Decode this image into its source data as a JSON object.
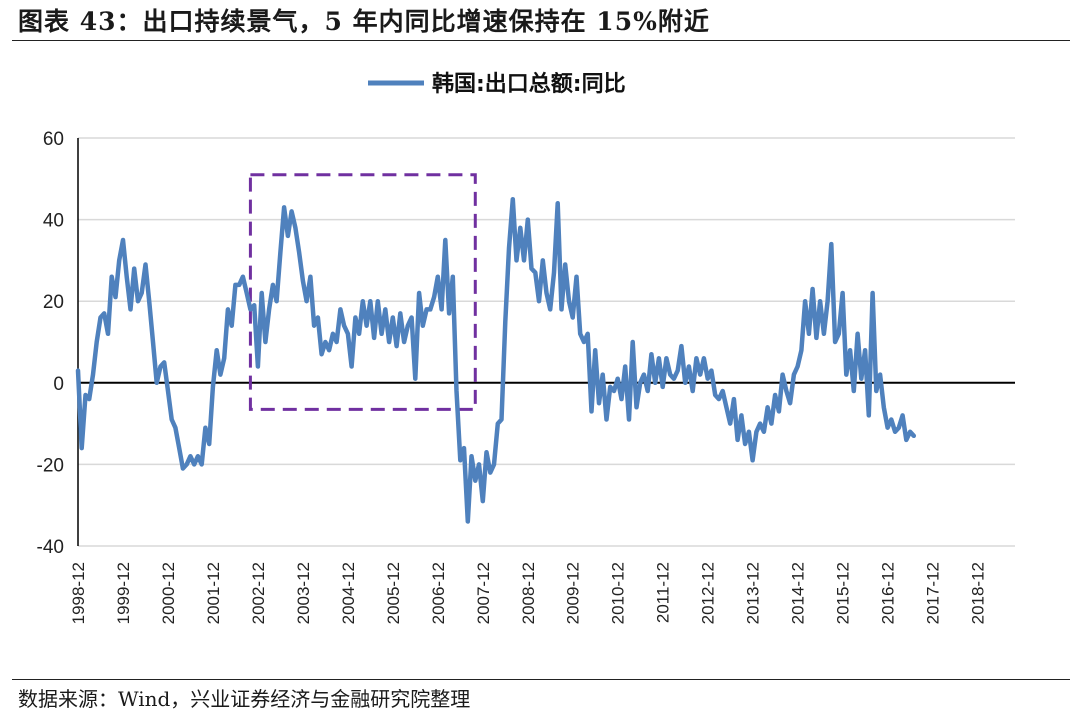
{
  "figure": {
    "title": "图表 43：出口持续景气，5 年内同比增速保持在 15%附近",
    "source": "数据来源：Wind，兴业证券经济与金融研究院整理"
  },
  "chart_data": {
    "type": "line",
    "title": "",
    "xlabel": "",
    "ylabel": "",
    "ylim": [
      -40,
      60
    ],
    "yticks": [
      -40,
      -20,
      0,
      20,
      40,
      60
    ],
    "grid": true,
    "legend_position": "top-center",
    "xticks": [
      "1998-12",
      "1999-12",
      "2000-12",
      "2001-12",
      "2002-12",
      "2003-12",
      "2004-12",
      "2005-12",
      "2006-12",
      "2007-12",
      "2008-12",
      "2009-12",
      "2010-12",
      "2011-12",
      "2012-12",
      "2013-12",
      "2014-12",
      "2015-12",
      "2016-12",
      "2017-12",
      "2018-12"
    ],
    "x_start": "1998-12",
    "x_end": "2019-10",
    "highlight_box": {
      "x_from": "2002-10",
      "x_to": "2007-10",
      "y_from": -6.5,
      "y_to": 51
    },
    "colors": {
      "line": "#4f81bd",
      "highlight": "#7030a0",
      "zero_line": "#000000",
      "grid": "#d9d9d9"
    },
    "series": [
      {
        "name": "韩国:出口总额:同比",
        "values": [
          [
            "1998-12",
            3
          ],
          [
            "1999-01",
            -16
          ],
          [
            "1999-02",
            -3
          ],
          [
            "1999-03",
            -4
          ],
          [
            "1999-04",
            2
          ],
          [
            "1999-05",
            10
          ],
          [
            "1999-06",
            16
          ],
          [
            "1999-07",
            17
          ],
          [
            "1999-08",
            12
          ],
          [
            "1999-09",
            26
          ],
          [
            "1999-10",
            21
          ],
          [
            "1999-11",
            30
          ],
          [
            "1999-12",
            35
          ],
          [
            "2000-01",
            26
          ],
          [
            "2000-02",
            18
          ],
          [
            "2000-03",
            28
          ],
          [
            "2000-04",
            20
          ],
          [
            "2000-05",
            22
          ],
          [
            "2000-06",
            29
          ],
          [
            "2000-07",
            20
          ],
          [
            "2000-08",
            10
          ],
          [
            "2000-09",
            0
          ],
          [
            "2000-10",
            4
          ],
          [
            "2000-11",
            5
          ],
          [
            "2000-12",
            -2
          ],
          [
            "2001-01",
            -9
          ],
          [
            "2001-02",
            -11
          ],
          [
            "2001-03",
            -16
          ],
          [
            "2001-04",
            -21
          ],
          [
            "2001-05",
            -20
          ],
          [
            "2001-06",
            -18
          ],
          [
            "2001-07",
            -20
          ],
          [
            "2001-08",
            -18
          ],
          [
            "2001-09",
            -20
          ],
          [
            "2001-10",
            -11
          ],
          [
            "2001-11",
            -15
          ],
          [
            "2001-12",
            -1
          ],
          [
            "2002-01",
            8
          ],
          [
            "2002-02",
            2
          ],
          [
            "2002-03",
            6
          ],
          [
            "2002-04",
            18
          ],
          [
            "2002-05",
            14
          ],
          [
            "2002-06",
            24
          ],
          [
            "2002-07",
            24
          ],
          [
            "2002-08",
            26
          ],
          [
            "2002-09",
            22
          ],
          [
            "2002-10",
            18
          ],
          [
            "2002-11",
            19
          ],
          [
            "2002-12",
            4
          ],
          [
            "2003-01",
            22
          ],
          [
            "2003-02",
            10
          ],
          [
            "2003-03",
            18
          ],
          [
            "2003-04",
            24
          ],
          [
            "2003-05",
            20
          ],
          [
            "2003-06",
            32
          ],
          [
            "2003-07",
            43
          ],
          [
            "2003-08",
            36
          ],
          [
            "2003-09",
            42
          ],
          [
            "2003-10",
            38
          ],
          [
            "2003-11",
            32
          ],
          [
            "2003-12",
            25
          ],
          [
            "2004-01",
            20
          ],
          [
            "2004-02",
            26
          ],
          [
            "2004-03",
            14
          ],
          [
            "2004-04",
            16
          ],
          [
            "2004-05",
            7
          ],
          [
            "2004-06",
            10
          ],
          [
            "2004-07",
            8
          ],
          [
            "2004-08",
            12
          ],
          [
            "2004-09",
            10
          ],
          [
            "2004-10",
            18
          ],
          [
            "2004-11",
            14
          ],
          [
            "2004-12",
            12
          ],
          [
            "2005-01",
            4
          ],
          [
            "2005-02",
            16
          ],
          [
            "2005-03",
            12
          ],
          [
            "2005-04",
            20
          ],
          [
            "2005-05",
            14
          ],
          [
            "2005-06",
            20
          ],
          [
            "2005-07",
            11
          ],
          [
            "2005-08",
            20
          ],
          [
            "2005-09",
            12
          ],
          [
            "2005-10",
            18
          ],
          [
            "2005-11",
            10
          ],
          [
            "2005-12",
            16
          ],
          [
            "2006-01",
            9
          ],
          [
            "2006-02",
            17
          ],
          [
            "2006-03",
            10
          ],
          [
            "2006-04",
            14
          ],
          [
            "2006-05",
            16
          ],
          [
            "2006-06",
            1
          ],
          [
            "2006-07",
            22
          ],
          [
            "2006-08",
            14
          ],
          [
            "2006-09",
            18
          ],
          [
            "2006-10",
            18
          ],
          [
            "2006-11",
            21
          ],
          [
            "2006-12",
            26
          ],
          [
            "2007-01",
            18
          ],
          [
            "2007-02",
            35
          ],
          [
            "2007-03",
            17
          ],
          [
            "2007-04",
            26
          ],
          [
            "2007-05",
            -2
          ],
          [
            "2007-06",
            -19
          ],
          [
            "2007-07",
            -16
          ],
          [
            "2007-08",
            -34
          ],
          [
            "2007-09",
            -18
          ],
          [
            "2007-10",
            -24
          ],
          [
            "2007-11",
            -20
          ],
          [
            "2007-12",
            -29
          ],
          [
            "2008-01",
            -17
          ],
          [
            "2008-02",
            -22
          ],
          [
            "2008-03",
            -20
          ],
          [
            "2008-04",
            -10
          ],
          [
            "2008-05",
            -9
          ],
          [
            "2008-06",
            15
          ],
          [
            "2008-07",
            33
          ],
          [
            "2008-08",
            45
          ],
          [
            "2008-09",
            30
          ],
          [
            "2008-10",
            38
          ],
          [
            "2008-11",
            30
          ],
          [
            "2008-12",
            40
          ],
          [
            "2009-01",
            28
          ],
          [
            "2009-02",
            27
          ],
          [
            "2009-03",
            20
          ],
          [
            "2009-04",
            30
          ],
          [
            "2009-05",
            22
          ],
          [
            "2009-06",
            18
          ],
          [
            "2009-07",
            27
          ],
          [
            "2009-08",
            44
          ],
          [
            "2009-09",
            18
          ],
          [
            "2009-10",
            29
          ],
          [
            "2009-11",
            20
          ],
          [
            "2009-12",
            16
          ],
          [
            "2010-01",
            26
          ],
          [
            "2010-02",
            12
          ],
          [
            "2010-03",
            10
          ],
          [
            "2010-04",
            12
          ],
          [
            "2010-05",
            -7
          ],
          [
            "2010-06",
            8
          ],
          [
            "2010-07",
            -5
          ],
          [
            "2010-08",
            2
          ],
          [
            "2010-09",
            -9
          ],
          [
            "2010-10",
            -1
          ],
          [
            "2010-11",
            -2
          ],
          [
            "2010-12",
            1
          ],
          [
            "2011-01",
            -4
          ],
          [
            "2011-02",
            4
          ],
          [
            "2011-03",
            -9
          ],
          [
            "2011-04",
            10
          ],
          [
            "2011-05",
            -6
          ],
          [
            "2011-06",
            0
          ],
          [
            "2011-07",
            2
          ],
          [
            "2011-08",
            -2
          ],
          [
            "2011-09",
            7
          ],
          [
            "2011-10",
            0
          ],
          [
            "2011-11",
            6
          ],
          [
            "2011-12",
            -1
          ],
          [
            "2012-01",
            6
          ],
          [
            "2012-02",
            2
          ],
          [
            "2012-03",
            1
          ],
          [
            "2012-04",
            3
          ],
          [
            "2012-05",
            9
          ],
          [
            "2012-06",
            0
          ],
          [
            "2012-07",
            4
          ],
          [
            "2012-08",
            -2
          ],
          [
            "2012-09",
            6
          ],
          [
            "2012-10",
            2
          ],
          [
            "2012-11",
            6
          ],
          [
            "2012-12",
            1
          ],
          [
            "2013-01",
            3
          ],
          [
            "2013-02",
            -3
          ],
          [
            "2013-03",
            -4
          ],
          [
            "2013-04",
            -2
          ],
          [
            "2013-05",
            -6
          ],
          [
            "2013-06",
            -10
          ],
          [
            "2013-07",
            -4
          ],
          [
            "2013-08",
            -14
          ],
          [
            "2013-09",
            -8
          ],
          [
            "2013-10",
            -15
          ],
          [
            "2013-11",
            -12
          ],
          [
            "2013-12",
            -19
          ],
          [
            "2014-01",
            -12
          ],
          [
            "2014-02",
            -10
          ],
          [
            "2014-03",
            -12
          ],
          [
            "2014-04",
            -6
          ],
          [
            "2014-05",
            -10
          ],
          [
            "2014-06",
            -3
          ],
          [
            "2014-07",
            -7
          ],
          [
            "2014-08",
            2
          ],
          [
            "2014-09",
            -2
          ],
          [
            "2014-10",
            -5
          ],
          [
            "2014-11",
            2
          ],
          [
            "2014-12",
            4
          ],
          [
            "2015-01",
            8
          ],
          [
            "2015-02",
            20
          ],
          [
            "2015-03",
            12
          ],
          [
            "2015-04",
            23
          ],
          [
            "2015-05",
            11
          ],
          [
            "2015-06",
            20
          ],
          [
            "2015-07",
            12
          ],
          [
            "2015-08",
            20
          ],
          [
            "2015-09",
            34
          ],
          [
            "2015-10",
            10
          ],
          [
            "2015-11",
            12
          ],
          [
            "2015-12",
            22
          ],
          [
            "2016-01",
            2
          ],
          [
            "2016-02",
            8
          ],
          [
            "2016-03",
            -2
          ],
          [
            "2016-04",
            12
          ],
          [
            "2016-05",
            1
          ],
          [
            "2016-06",
            8
          ],
          [
            "2016-07",
            -8
          ],
          [
            "2016-08",
            22
          ],
          [
            "2016-09",
            -2
          ],
          [
            "2016-10",
            2
          ],
          [
            "2016-11",
            -6
          ],
          [
            "2016-12",
            -11
          ],
          [
            "2017-01",
            -9
          ],
          [
            "2017-02",
            -12
          ],
          [
            "2017-03",
            -11
          ],
          [
            "2017-04",
            -8
          ],
          [
            "2017-05",
            -14
          ],
          [
            "2017-06",
            -12
          ],
          [
            "2017-07",
            -13
          ]
        ]
      }
    ]
  }
}
